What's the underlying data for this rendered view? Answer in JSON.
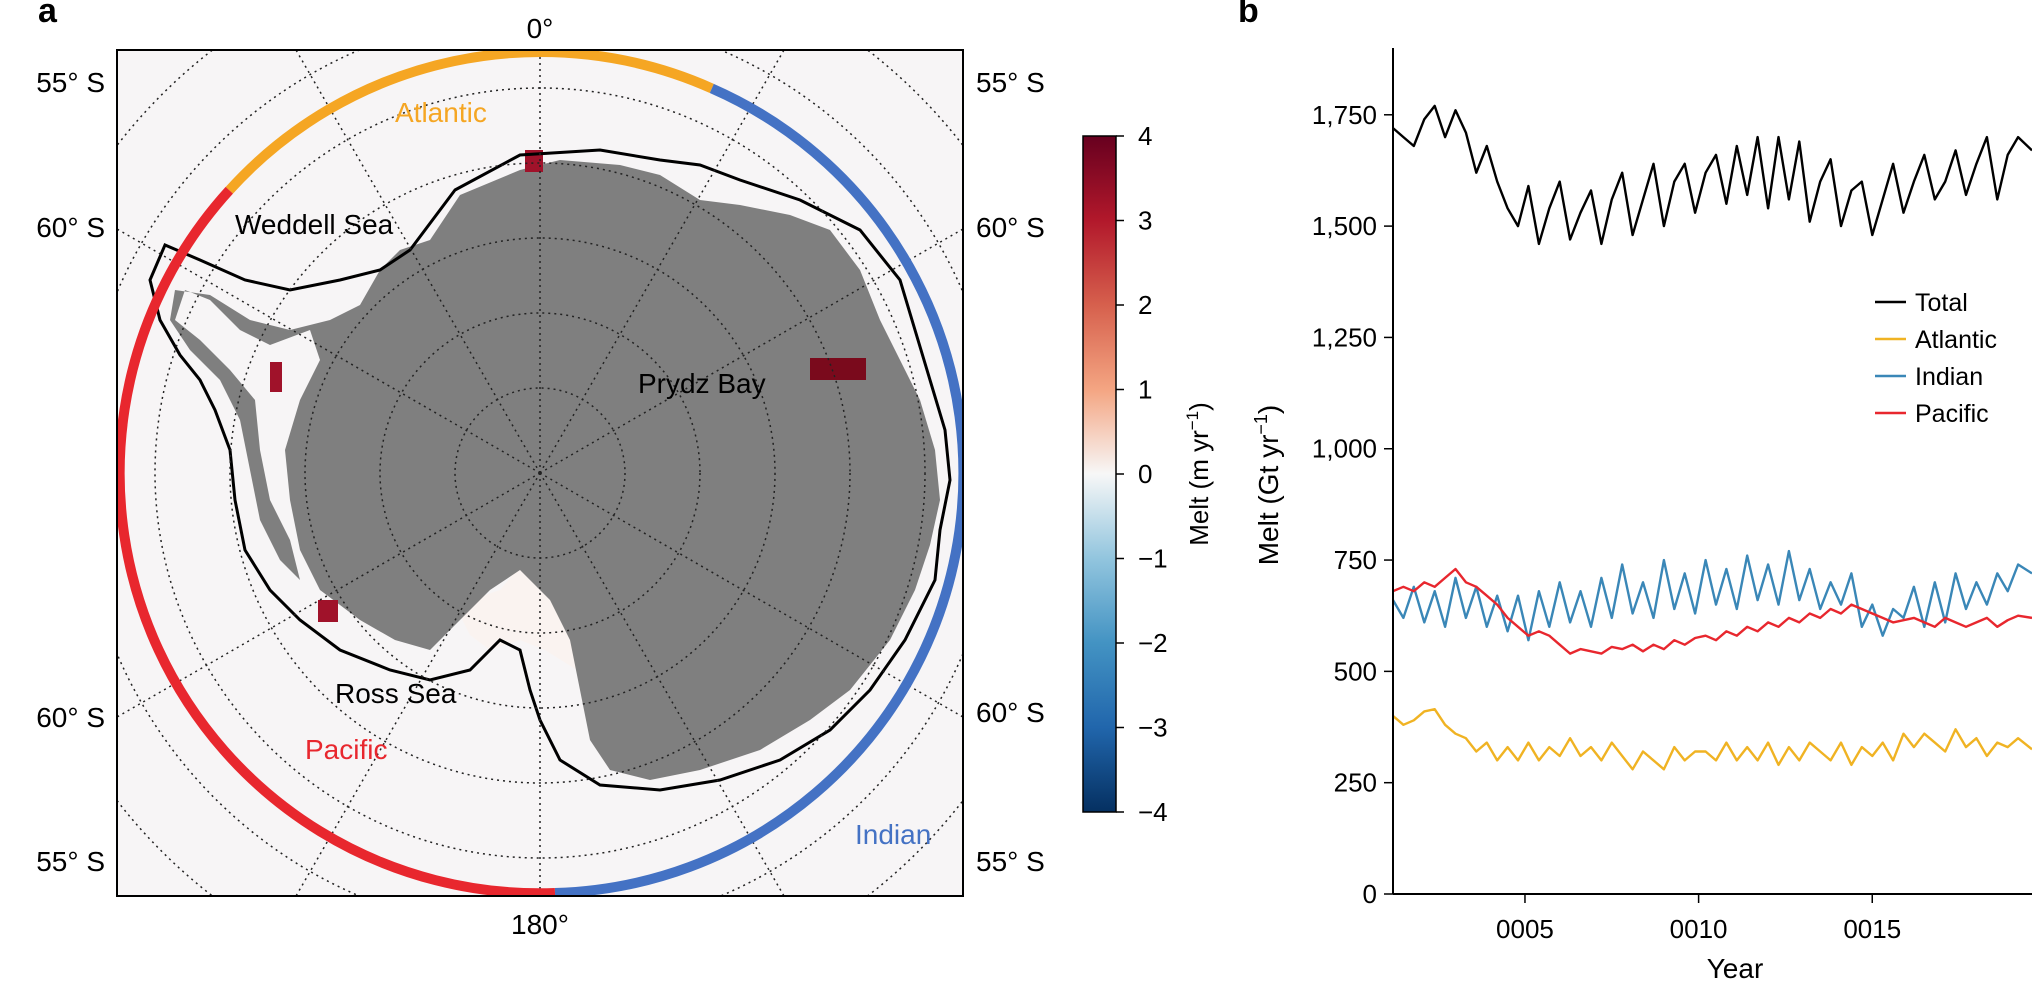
{
  "panels": {
    "a": {
      "label": "a"
    },
    "b": {
      "label": "b"
    }
  },
  "map": {
    "lon_labels": {
      "top": "0°",
      "bottom": "180°"
    },
    "lat_labels": {
      "left": [
        "55° S",
        "60° S",
        "60° S",
        "55° S"
      ],
      "right": [
        "55° S",
        "60° S",
        "60° S",
        "55° S"
      ]
    },
    "place_labels": {
      "weddell": "Weddell Sea",
      "prydz": "Prydz Bay",
      "ross": "Ross Sea"
    },
    "sector_labels": {
      "atlantic": "Atlantic",
      "pacific": "Pacific",
      "indian": "Indian"
    },
    "colors": {
      "ice": "#7f7f7f",
      "ocean": "#f7f5f6",
      "atlantic": "#f5a623",
      "pacific": "#e8272e",
      "indian": "#4472c4"
    },
    "colorbar": {
      "label": "Melt (m yr",
      "label_sup": "−1",
      "label_end": ")",
      "ticks": [
        "4",
        "3",
        "2",
        "1",
        "0",
        "−1",
        "−2",
        "−3",
        "−4"
      ],
      "range": [
        -4,
        4
      ]
    }
  },
  "chart_data": {
    "type": "line",
    "ylabel": "Melt (Gt yr",
    "ylabel_sup": "−1",
    "ylabel_end": ")",
    "xlabel": "Year",
    "xlim": [
      1.2,
      19.6
    ],
    "ylim": [
      0,
      1900
    ],
    "yticks": [
      0,
      250,
      500,
      750,
      1000,
      1250,
      1500,
      1750
    ],
    "ytick_labels": [
      "0",
      "250",
      "500",
      "750",
      "1,000",
      "1,250",
      "1,500",
      "1,750"
    ],
    "xticks": [
      5,
      10,
      15
    ],
    "xtick_labels": [
      "0005",
      "0010",
      "0015"
    ],
    "legend_position": "right",
    "series": [
      {
        "name": "Total",
        "color": "#000000",
        "x": [
          1.2,
          1.5,
          1.8,
          2.1,
          2.4,
          2.7,
          3.0,
          3.3,
          3.6,
          3.9,
          4.2,
          4.5,
          4.8,
          5.1,
          5.4,
          5.7,
          6.0,
          6.3,
          6.6,
          6.9,
          7.2,
          7.5,
          7.8,
          8.1,
          8.4,
          8.7,
          9.0,
          9.3,
          9.6,
          9.9,
          10.2,
          10.5,
          10.8,
          11.1,
          11.4,
          11.7,
          12.0,
          12.3,
          12.6,
          12.9,
          13.2,
          13.5,
          13.8,
          14.1,
          14.4,
          14.7,
          15.0,
          15.3,
          15.6,
          15.9,
          16.2,
          16.5,
          16.8,
          17.1,
          17.4,
          17.7,
          18.0,
          18.3,
          18.6,
          18.9,
          19.2,
          19.6
        ],
        "y": [
          1720,
          1700,
          1680,
          1740,
          1770,
          1700,
          1760,
          1710,
          1620,
          1680,
          1600,
          1540,
          1500,
          1590,
          1460,
          1540,
          1600,
          1470,
          1530,
          1580,
          1460,
          1560,
          1620,
          1480,
          1560,
          1640,
          1500,
          1600,
          1640,
          1530,
          1620,
          1660,
          1550,
          1680,
          1570,
          1700,
          1540,
          1700,
          1560,
          1690,
          1510,
          1600,
          1650,
          1500,
          1580,
          1600,
          1480,
          1560,
          1640,
          1530,
          1600,
          1660,
          1560,
          1600,
          1670,
          1570,
          1640,
          1700,
          1560,
          1660,
          1700,
          1670
        ]
      },
      {
        "name": "Atlantic",
        "color": "#f0b323",
        "x": [
          1.2,
          1.5,
          1.8,
          2.1,
          2.4,
          2.7,
          3.0,
          3.3,
          3.6,
          3.9,
          4.2,
          4.5,
          4.8,
          5.1,
          5.4,
          5.7,
          6.0,
          6.3,
          6.6,
          6.9,
          7.2,
          7.5,
          7.8,
          8.1,
          8.4,
          8.7,
          9.0,
          9.3,
          9.6,
          9.9,
          10.2,
          10.5,
          10.8,
          11.1,
          11.4,
          11.7,
          12.0,
          12.3,
          12.6,
          12.9,
          13.2,
          13.5,
          13.8,
          14.1,
          14.4,
          14.7,
          15.0,
          15.3,
          15.6,
          15.9,
          16.2,
          16.5,
          16.8,
          17.1,
          17.4,
          17.7,
          18.0,
          18.3,
          18.6,
          18.9,
          19.2,
          19.6
        ],
        "y": [
          400,
          380,
          390,
          410,
          415,
          380,
          360,
          350,
          320,
          340,
          300,
          330,
          300,
          340,
          300,
          330,
          310,
          350,
          310,
          330,
          300,
          340,
          310,
          280,
          320,
          300,
          280,
          330,
          300,
          320,
          320,
          300,
          340,
          300,
          330,
          300,
          340,
          290,
          330,
          300,
          340,
          320,
          300,
          340,
          290,
          330,
          310,
          340,
          300,
          360,
          330,
          360,
          340,
          320,
          370,
          330,
          350,
          310,
          340,
          330,
          350,
          325
        ]
      },
      {
        "name": "Indian",
        "color": "#3a87b7",
        "x": [
          1.2,
          1.5,
          1.8,
          2.1,
          2.4,
          2.7,
          3.0,
          3.3,
          3.6,
          3.9,
          4.2,
          4.5,
          4.8,
          5.1,
          5.4,
          5.7,
          6.0,
          6.3,
          6.6,
          6.9,
          7.2,
          7.5,
          7.8,
          8.1,
          8.4,
          8.7,
          9.0,
          9.3,
          9.6,
          9.9,
          10.2,
          10.5,
          10.8,
          11.1,
          11.4,
          11.7,
          12.0,
          12.3,
          12.6,
          12.9,
          13.2,
          13.5,
          13.8,
          14.1,
          14.4,
          14.7,
          15.0,
          15.3,
          15.6,
          15.9,
          16.2,
          16.5,
          16.8,
          17.1,
          17.4,
          17.7,
          18.0,
          18.3,
          18.6,
          18.9,
          19.2,
          19.6
        ],
        "y": [
          660,
          620,
          690,
          610,
          680,
          600,
          710,
          620,
          690,
          600,
          670,
          590,
          670,
          570,
          680,
          600,
          700,
          610,
          680,
          600,
          710,
          620,
          740,
          630,
          700,
          620,
          750,
          640,
          720,
          630,
          750,
          650,
          730,
          640,
          760,
          660,
          740,
          650,
          770,
          660,
          730,
          640,
          700,
          650,
          720,
          600,
          650,
          580,
          640,
          620,
          690,
          600,
          700,
          610,
          720,
          640,
          700,
          650,
          720,
          680,
          740,
          720
        ]
      },
      {
        "name": "Pacific",
        "color": "#e8272e",
        "x": [
          1.2,
          1.5,
          1.8,
          2.1,
          2.4,
          2.7,
          3.0,
          3.3,
          3.6,
          3.9,
          4.2,
          4.5,
          4.8,
          5.1,
          5.4,
          5.7,
          6.0,
          6.3,
          6.6,
          6.9,
          7.2,
          7.5,
          7.8,
          8.1,
          8.4,
          8.7,
          9.0,
          9.3,
          9.6,
          9.9,
          10.2,
          10.5,
          10.8,
          11.1,
          11.4,
          11.7,
          12.0,
          12.3,
          12.6,
          12.9,
          13.2,
          13.5,
          13.8,
          14.1,
          14.4,
          14.7,
          15.0,
          15.3,
          15.6,
          15.9,
          16.2,
          16.5,
          16.8,
          17.1,
          17.4,
          17.7,
          18.0,
          18.3,
          18.6,
          18.9,
          19.2,
          19.6
        ],
        "y": [
          680,
          690,
          680,
          700,
          690,
          710,
          730,
          700,
          690,
          670,
          650,
          620,
          600,
          580,
          590,
          580,
          560,
          540,
          550,
          545,
          540,
          555,
          550,
          560,
          545,
          560,
          550,
          570,
          560,
          575,
          580,
          570,
          590,
          580,
          600,
          590,
          610,
          600,
          620,
          610,
          630,
          620,
          640,
          630,
          650,
          640,
          630,
          620,
          610,
          615,
          620,
          610,
          600,
          620,
          610,
          600,
          610,
          620,
          600,
          615,
          625,
          620
        ]
      }
    ]
  }
}
